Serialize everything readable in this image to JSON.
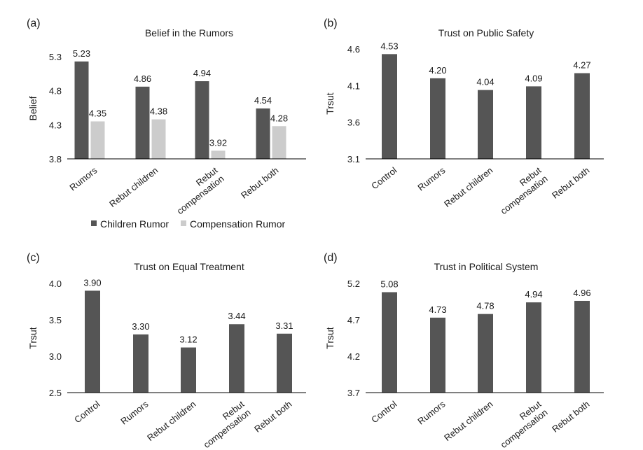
{
  "chart_data": [
    {
      "panel": "(a)",
      "type": "bar",
      "title": "Belief in the Rumors",
      "ylabel": "Belief",
      "xlabel": "",
      "ylim": [
        3.8,
        5.3
      ],
      "yticks": [
        "3.8",
        "4.3",
        "4.8",
        "5.3"
      ],
      "categories": [
        [
          "Rumors"
        ],
        [
          "Rebut children"
        ],
        [
          "Rebut",
          "compensation"
        ],
        [
          "Rebut both"
        ]
      ],
      "series": [
        {
          "name": "Children Rumor",
          "color": "#555555",
          "values": [
            5.23,
            4.86,
            4.94,
            4.54
          ],
          "labels": [
            "5.23",
            "4.86",
            "4.94",
            "4.54"
          ]
        },
        {
          "name": "Compensation Rumor",
          "color": "#cccccc",
          "values": [
            4.35,
            4.38,
            3.92,
            4.28
          ],
          "labels": [
            "4.35",
            "4.38",
            "3.92",
            "4.28"
          ]
        }
      ],
      "legend": "bottom"
    },
    {
      "panel": "(b)",
      "type": "bar",
      "title": "Trust on Public Safety",
      "ylabel": "Trsut",
      "xlabel": "",
      "ylim": [
        3.1,
        4.6
      ],
      "yticks": [
        "3.1",
        "3.6",
        "4.1",
        "4.6"
      ],
      "categories": [
        [
          "Control"
        ],
        [
          "Rumors"
        ],
        [
          "Rebut children"
        ],
        [
          "Rebut",
          "compensation"
        ],
        [
          "Rebut both"
        ]
      ],
      "series": [
        {
          "color": "#555555",
          "values": [
            4.53,
            4.2,
            4.04,
            4.09,
            4.27
          ],
          "labels": [
            "4.53",
            "4.20",
            "4.04",
            "4.09",
            "4.27"
          ]
        }
      ]
    },
    {
      "panel": "(c)",
      "type": "bar",
      "title": "Trust on Equal Treatment",
      "ylabel": "Trsut",
      "xlabel": "",
      "ylim": [
        2.5,
        4.0
      ],
      "yticks": [
        "2.5",
        "3.0",
        "3.5",
        "4.0"
      ],
      "categories": [
        [
          "Control"
        ],
        [
          "Rumors"
        ],
        [
          "Rebut children"
        ],
        [
          "Rebut",
          "compensation"
        ],
        [
          "Rebut both"
        ]
      ],
      "series": [
        {
          "color": "#555555",
          "values": [
            3.9,
            3.3,
            3.12,
            3.44,
            3.31
          ],
          "labels": [
            "3.90",
            "3.30",
            "3.12",
            "3.44",
            "3.31"
          ]
        }
      ]
    },
    {
      "panel": "(d)",
      "type": "bar",
      "title": "Trust in Political System",
      "ylabel": "Trsut",
      "xlabel": "",
      "ylim": [
        3.7,
        5.2
      ],
      "yticks": [
        "3.7",
        "4.2",
        "4.7",
        "5.2"
      ],
      "categories": [
        [
          "Control"
        ],
        [
          "Rumors"
        ],
        [
          "Rebut children"
        ],
        [
          "Rebut",
          "compensation"
        ],
        [
          "Rebut both"
        ]
      ],
      "series": [
        {
          "color": "#555555",
          "values": [
            5.08,
            4.73,
            4.78,
            4.94,
            4.96
          ],
          "labels": [
            "5.08",
            "4.73",
            "4.78",
            "4.94",
            "4.96"
          ]
        }
      ]
    }
  ]
}
